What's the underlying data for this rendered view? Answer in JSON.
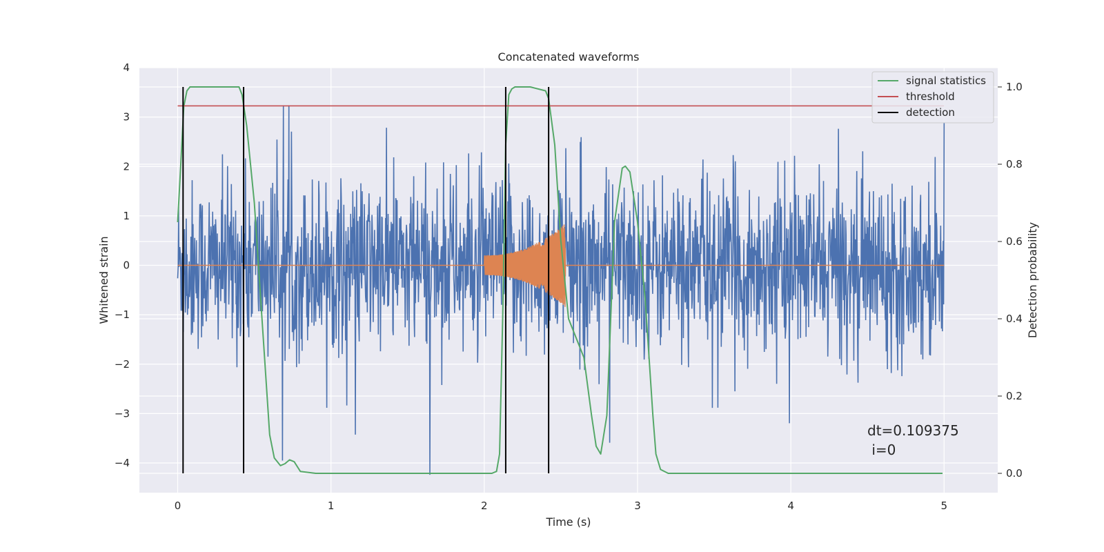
{
  "chart_data": {
    "type": "line",
    "title": "Concatenated waveforms",
    "xlabel": "Time (s)",
    "ylabel": "Whitened strain",
    "y2label": "Detection probability",
    "xlim": [
      -0.25,
      5.35
    ],
    "ylim": [
      -4.6,
      4.0
    ],
    "y2lim": [
      -0.05,
      1.05
    ],
    "xticks": [
      0,
      1,
      2,
      3,
      4,
      5
    ],
    "yticks": [
      4,
      3,
      2,
      1,
      0,
      -1,
      -2,
      -3,
      -4
    ],
    "y2ticks": [
      1.0,
      0.8,
      0.6,
      0.4,
      0.2,
      0.0
    ],
    "grid": true,
    "legend_position": "top-right",
    "legend": [
      "signal statistics",
      "threshold",
      "detection"
    ],
    "colors": {
      "noise": "#4c72b0",
      "injection": "#dd8452",
      "signal_statistics": "#55a868",
      "threshold": "#c44e52",
      "detection": "#000000",
      "plot_bg": "#eaeaf2",
      "grid": "#ffffff"
    },
    "series": [
      {
        "name": "noise",
        "axis": "left",
        "description_range": "whitened noise, roughly ±1.5 with spikes to ±4",
        "x_range": [
          0,
          5
        ]
      },
      {
        "name": "injection",
        "axis": "left",
        "x_range": [
          2.0,
          2.53
        ],
        "amplitude_start": 0.2,
        "amplitude_end": 0.85
      },
      {
        "name": "signal statistics",
        "axis": "right",
        "x": [
          0.0,
          0.02,
          0.04,
          0.06,
          0.08,
          0.12,
          0.2,
          0.3,
          0.4,
          0.42,
          0.45,
          0.5,
          0.55,
          0.6,
          0.63,
          0.67,
          0.7,
          0.73,
          0.76,
          0.8,
          0.9,
          1.0,
          1.5,
          2.0,
          2.05,
          2.08,
          2.1,
          2.12,
          2.14,
          2.16,
          2.18,
          2.2,
          2.3,
          2.4,
          2.42,
          2.46,
          2.5,
          2.55,
          2.6,
          2.65,
          2.7,
          2.73,
          2.76,
          2.8,
          2.85,
          2.9,
          2.92,
          2.95,
          3.0,
          3.05,
          3.1,
          3.12,
          3.15,
          3.2,
          3.5,
          4.0,
          4.5,
          4.99
        ],
        "y": [
          0.65,
          0.8,
          0.95,
          0.99,
          1.0,
          1.0,
          1.0,
          1.0,
          1.0,
          0.98,
          0.9,
          0.7,
          0.4,
          0.1,
          0.04,
          0.02,
          0.025,
          0.035,
          0.03,
          0.005,
          0.0,
          0.0,
          0.0,
          0.0,
          0.0,
          0.005,
          0.05,
          0.4,
          0.85,
          0.98,
          0.995,
          1.0,
          1.0,
          0.99,
          0.97,
          0.85,
          0.6,
          0.4,
          0.35,
          0.3,
          0.15,
          0.07,
          0.05,
          0.15,
          0.65,
          0.79,
          0.795,
          0.78,
          0.65,
          0.45,
          0.15,
          0.05,
          0.01,
          0.0,
          0.0,
          0.0,
          0.0,
          0.0
        ]
      },
      {
        "name": "threshold",
        "axis": "right",
        "x": [
          0,
          5
        ],
        "y": [
          0.951,
          0.951
        ]
      }
    ],
    "detections": [
      0.035,
      0.43,
      2.14,
      2.42
    ],
    "annotation": {
      "line1": "dt=0.109375",
      "line2": " i=0"
    }
  }
}
